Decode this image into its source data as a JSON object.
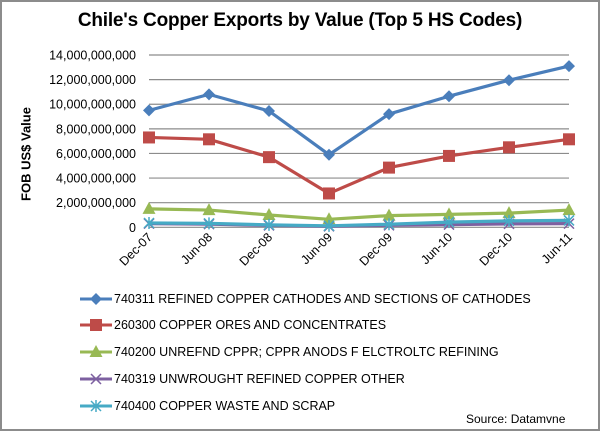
{
  "chart_data": {
    "type": "line",
    "title": "Chile's Copper Exports by Value (Top 5 HS Codes)",
    "xlabel": "",
    "ylabel": "FOB US$ Value",
    "ylim": [
      0,
      14000000000
    ],
    "yticks": [
      0,
      2000000000,
      4000000000,
      6000000000,
      8000000000,
      10000000000,
      12000000000,
      14000000000
    ],
    "ytick_labels": [
      "0",
      "2,000,000,000",
      "4,000,000,000",
      "6,000,000,000",
      "8,000,000,000",
      "10,000,000,000",
      "12,000,000,000",
      "14,000,000,000"
    ],
    "grid": true,
    "legend_position": "bottom",
    "categories": [
      "Dec-07",
      "Jun-08",
      "Dec-08",
      "Jun-09",
      "Dec-09",
      "Jun-10",
      "Dec-10",
      "Jun-11"
    ],
    "series": [
      {
        "name": "740311  REFINED COPPER CATHODES AND SECTIONS OF CATHODES",
        "color": "#4a7ebb",
        "marker": "diamond",
        "values": [
          9500000000,
          10800000000,
          9450000000,
          5900000000,
          9200000000,
          10650000000,
          11950000000,
          13100000000
        ]
      },
      {
        "name": "260300  COPPER ORES AND CONCENTRATES",
        "color": "#be4b48",
        "marker": "square",
        "values": [
          7300000000,
          7150000000,
          5700000000,
          2750000000,
          4850000000,
          5800000000,
          6500000000,
          7150000000
        ]
      },
      {
        "name": "740200  UNREFND CPPR; CPPR ANODS F ELCTROLTC REFINING",
        "color": "#98b954",
        "marker": "triangle",
        "values": [
          1500000000,
          1400000000,
          1000000000,
          650000000,
          950000000,
          1050000000,
          1150000000,
          1400000000
        ]
      },
      {
        "name": "740319  UNWROUGHT REFINED COPPER OTHER",
        "color": "#7d60a0",
        "marker": "x",
        "values": [
          300000000,
          260000000,
          150000000,
          80000000,
          160000000,
          220000000,
          280000000,
          300000000
        ]
      },
      {
        "name": "740400  COPPER WASTE AND SCRAP",
        "color": "#46aac5",
        "marker": "star",
        "values": [
          350000000,
          320000000,
          200000000,
          120000000,
          250000000,
          420000000,
          520000000,
          560000000
        ]
      }
    ],
    "annotations": [
      "Source: Datamvne"
    ]
  },
  "source_text": "Source: Datamvne"
}
